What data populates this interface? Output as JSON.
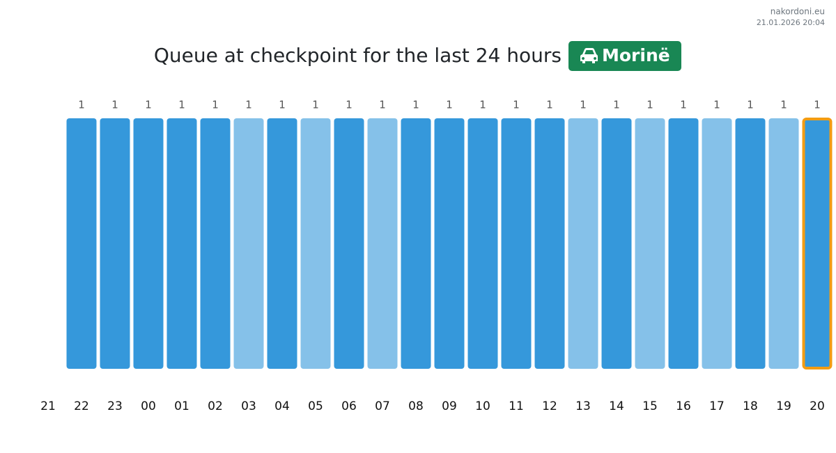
{
  "site": "nakordoni.eu",
  "timestamp": "21.01.2026 20:04",
  "chart_data": {
    "type": "bar",
    "title": "Queue at checkpoint for the last 24 hours",
    "badge": "Morinë",
    "badge_color": "#198754",
    "categories": [
      "21",
      "22",
      "23",
      "00",
      "01",
      "02",
      "03",
      "04",
      "05",
      "06",
      "07",
      "08",
      "09",
      "10",
      "11",
      "12",
      "13",
      "14",
      "15",
      "16",
      "17",
      "18",
      "19",
      "20"
    ],
    "values": [
      null,
      1,
      1,
      1,
      1,
      1,
      1,
      1,
      1,
      1,
      1,
      1,
      1,
      1,
      1,
      1,
      1,
      1,
      1,
      1,
      1,
      1,
      1,
      1
    ],
    "colors": [
      null,
      "#3598db",
      "#3598db",
      "#3598db",
      "#3598db",
      "#3598db",
      "#85c1e9",
      "#3598db",
      "#85c1e9",
      "#3598db",
      "#85c1e9",
      "#3598db",
      "#3598db",
      "#3598db",
      "#3598db",
      "#3598db",
      "#85c1e9",
      "#3598db",
      "#85c1e9",
      "#3598db",
      "#85c1e9",
      "#3598db",
      "#85c1e9",
      "#3598db"
    ],
    "highlight": "20",
    "highlight_color": "#f39c12"
  }
}
